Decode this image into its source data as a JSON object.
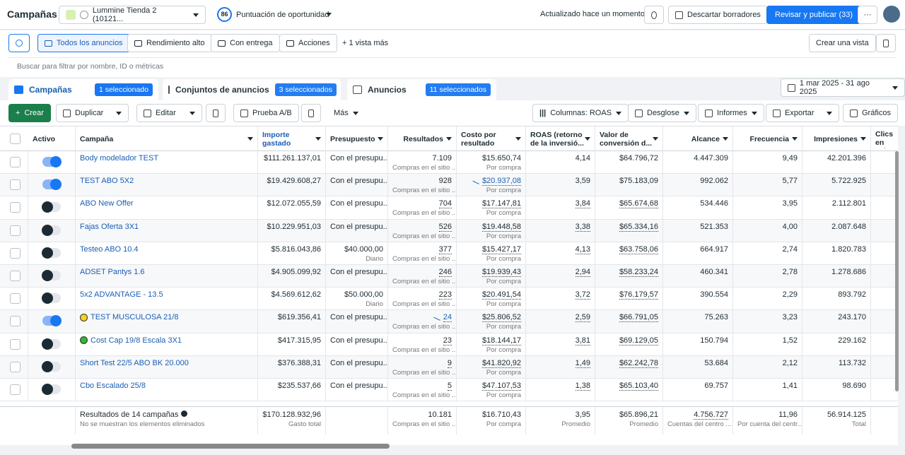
{
  "header": {
    "title": "Campañas",
    "account": "Lummine Tienda 2 (10121...",
    "score": "86",
    "score_label": "Puntuación de oportunidad",
    "updated": "Actualizado hace un momento",
    "discard": "Descartar borradores",
    "publish": "Revisar y publicar (33)"
  },
  "views": {
    "items": [
      "Todos los anuncios",
      "Rendimiento alto",
      "Con entrega",
      "Acciones"
    ],
    "more": "1 vista más",
    "create_view": "Crear una vista"
  },
  "search_placeholder": "Buscar para filtrar por nombre, ID o métricas",
  "tabs": [
    {
      "label": "Campañas",
      "badge": "1 seleccionado"
    },
    {
      "label": "Conjuntos de anuncios",
      "badge": "3 seleccionados"
    },
    {
      "label": "Anuncios",
      "badge": "11 seleccionados"
    }
  ],
  "date_range": "1 mar 2025 - 31 ago 2025",
  "toolbar": {
    "create": "Crear",
    "duplicate": "Duplicar",
    "edit": "Editar",
    "ab_test": "Prueba A/B",
    "more": "Más",
    "columns": "Columnas: ROAS",
    "breakdown": "Desglose",
    "reports": "Informes",
    "export": "Exportar",
    "charts": "Gráficos"
  },
  "table": {
    "columns": [
      "Activo",
      "Campaña",
      "Importe gastado",
      "Presupuesto",
      "Resultados",
      "Costo por resultado",
      "ROAS (retorno de la inversió...",
      "Valor de conversión d...",
      "Alcance",
      "Frecuencia",
      "Impresiones",
      "Clics en enlace"
    ],
    "rows": [
      {
        "active": true,
        "name": "Body modelador TEST",
        "spent": "$111.261.137,01",
        "budget": "Con el presupu...",
        "results": "7.109",
        "results_note": "Compras en el sitio ...",
        "cost": "$15.650,74",
        "cost_note": "Por compra",
        "roas": "4,14",
        "conv_value": "$64.796,72",
        "reach": "4.447.309",
        "frequency": "9,49",
        "impressions": "42.201.396"
      },
      {
        "active": true,
        "name": "TEST ABO 5X2",
        "spent": "$19.429.608,27",
        "budget": "Con el presupu...",
        "results": "928",
        "results_note": "Compras en el sitio ...",
        "cost": "$20.937,08",
        "cost_note": "Por compra",
        "roas": "3,59",
        "conv_value": "$75.183,09",
        "reach": "992.062",
        "frequency": "5,77",
        "impressions": "5.722.925"
      },
      {
        "active": false,
        "name": "ABO New Offer",
        "spent": "$12.072.055,59",
        "budget": "Con el presupu...",
        "results": "704",
        "results_note": "Compras en el sitio ...",
        "cost": "$17.147,81",
        "cost_note": "Por compra",
        "roas": "3,84",
        "conv_value": "$65.674,68",
        "reach": "534.446",
        "frequency": "3,95",
        "impressions": "2.112.801"
      },
      {
        "active": false,
        "name": "Fajas Oferta 3X1",
        "spent": "$10.229.951,03",
        "budget": "Con el presupu...",
        "results": "526",
        "results_note": "Compras en el sitio ...",
        "cost": "$19.448,58",
        "cost_note": "Por compra",
        "roas": "3,38",
        "conv_value": "$65.334,16",
        "reach": "521.353",
        "frequency": "4,00",
        "impressions": "2.087.648"
      },
      {
        "active": false,
        "name": "Testeo ABO 10.4",
        "spent": "$5.816.043,86",
        "budget": "$40.000,00",
        "budget_note": "Diario",
        "results": "377",
        "results_note": "Compras en el sitio ...",
        "cost": "$15.427,17",
        "cost_note": "Por compra",
        "roas": "4,13",
        "conv_value": "$63.758,06",
        "reach": "664.917",
        "frequency": "2,74",
        "impressions": "1.820.783"
      },
      {
        "active": false,
        "name": "ADSET Pantys 1.6",
        "spent": "$4.905.099,92",
        "budget": "Con el presupu...",
        "results": "246",
        "results_note": "Compras en el sitio ...",
        "cost": "$19.939,43",
        "cost_note": "Por compra",
        "roas": "2,94",
        "conv_value": "$58.233,24",
        "reach": "460.341",
        "frequency": "2,78",
        "impressions": "1.278.686"
      },
      {
        "active": false,
        "name": "5x2 ADVANTAGE - 13.5",
        "spent": "$4.569.612,62",
        "budget": "$50.000,00",
        "budget_note": "Diario",
        "results": "223",
        "results_note": "Compras en el sitio ...",
        "cost": "$20.491,54",
        "cost_note": "Por compra",
        "roas": "3,72",
        "conv_value": "$76.179,57",
        "reach": "390.554",
        "frequency": "2,29",
        "impressions": "893.792"
      },
      {
        "active": true,
        "marker_color": "#f7d21e",
        "name": "TEST MUSCULOSA 21/8",
        "spent": "$619.356,41",
        "budget": "Con el presupu...",
        "results": "24",
        "results_note": "Compras en el sitio ...",
        "cost": "$25.806,52",
        "cost_note": "Por compra",
        "roas": "2,59",
        "conv_value": "$66.791,05",
        "reach": "75.263",
        "frequency": "3,23",
        "impressions": "243.170"
      },
      {
        "active": false,
        "marker_color": "#2eb82e",
        "name": "Cost Cap 19/8 Escala 3X1",
        "spent": "$417.315,95",
        "budget": "Con el presupu...",
        "results": "23",
        "results_note": "Compras en el sitio ...",
        "cost": "$18.144,17",
        "cost_note": "Por compra",
        "roas": "3,81",
        "conv_value": "$69.129,05",
        "reach": "150.794",
        "frequency": "1,52",
        "impressions": "229.162"
      },
      {
        "active": false,
        "name": "Short Test 22/5 ABO BK 20.000",
        "spent": "$376.388,31",
        "budget": "Con el presupu...",
        "results": "9",
        "results_note": "Compras en el sitio ...",
        "cost": "$41.820,92",
        "cost_note": "Por compra",
        "roas": "1,49",
        "conv_value": "$62.242,78",
        "reach": "53.684",
        "frequency": "2,12",
        "impressions": "113.732"
      },
      {
        "active": false,
        "name": "Cbo Escalado 25/8",
        "spent": "$235.537,66",
        "budget": "Con el presupu...",
        "results": "5",
        "results_note": "Compras en el sitio ...",
        "cost": "$47.107,53",
        "cost_note": "Por compra",
        "roas": "1,38",
        "conv_value": "$65.103,40",
        "reach": "69.757",
        "frequency": "1,41",
        "impressions": "98.690"
      }
    ],
    "footer": {
      "label": "Resultados de 14 campañas",
      "note": "No se muestran los elementos eliminados",
      "spent": "$170.128.932,96",
      "spent_note": "Gasto total",
      "results": "10.181",
      "results_note": "Compras en el sitio ...",
      "cost": "$16.710,43",
      "cost_note": "Por compra",
      "roas": "3,95",
      "roas_note": "Promedio",
      "conv_value": "$65.896,21",
      "conv_value_note": "Promedio",
      "reach": "4.756.727",
      "reach_note": "Cuentas del centro ...",
      "frequency": "11,96",
      "frequency_note": "Por cuenta del centr...",
      "impressions": "56.914.125",
      "impressions_note": "Total"
    }
  }
}
